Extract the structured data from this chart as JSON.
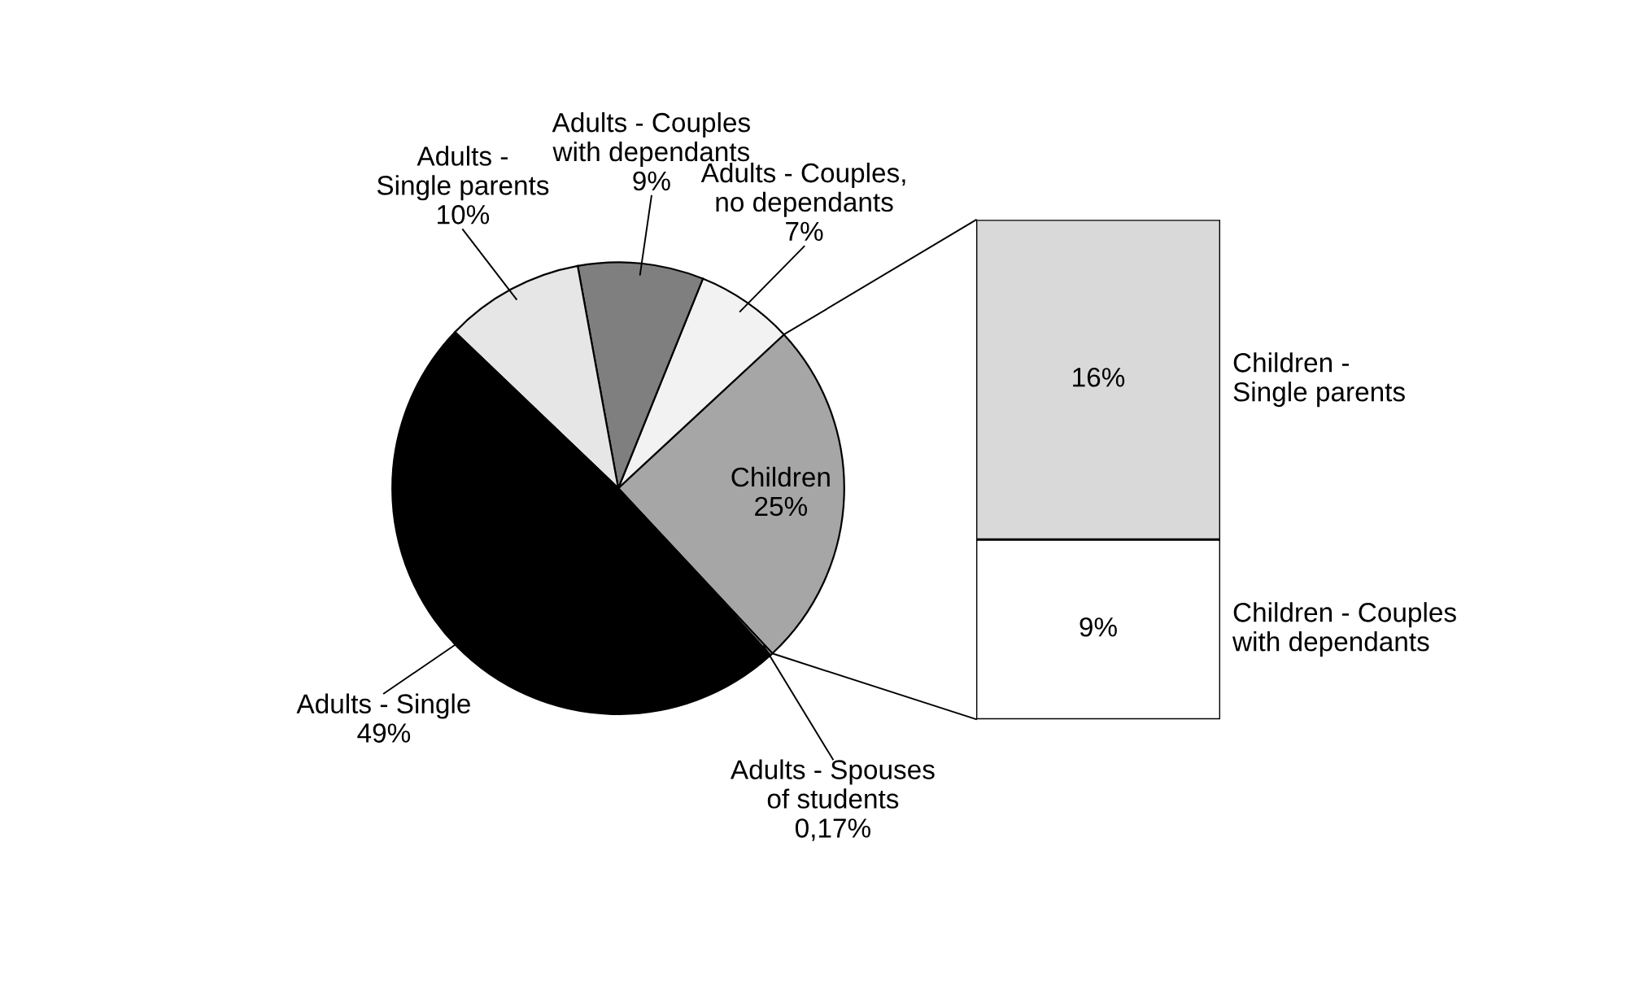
{
  "chart_data": [
    {
      "type": "pie",
      "categories": [
        "Children",
        "Adults - Couples, no dependants",
        "Adults - Couples with dependants",
        "Adults - Single parents",
        "Adults - Single",
        "Adults - Spouses of students"
      ],
      "values": [
        25,
        7,
        9,
        10,
        49,
        0.17
      ],
      "value_labels": [
        "25%",
        "7%",
        "9%",
        "10%",
        "49%",
        "0,17%"
      ],
      "colors": [
        "#a6a6a6",
        "#f2f2f2",
        "#7f7f7f",
        "#e6e6e6",
        "#000000",
        "#ffffff"
      ]
    },
    {
      "type": "bar",
      "stacked": true,
      "categories": [
        null
      ],
      "series": [
        {
          "name": "Children - Couples with dependants",
          "color": "#ffffff",
          "values": [
            9
          ],
          "value_labels": [
            "9%"
          ]
        },
        {
          "name": "Children - Single parents",
          "color": "#d9d9d9",
          "values": [
            16
          ],
          "value_labels": [
            "16%"
          ]
        }
      ]
    }
  ]
}
